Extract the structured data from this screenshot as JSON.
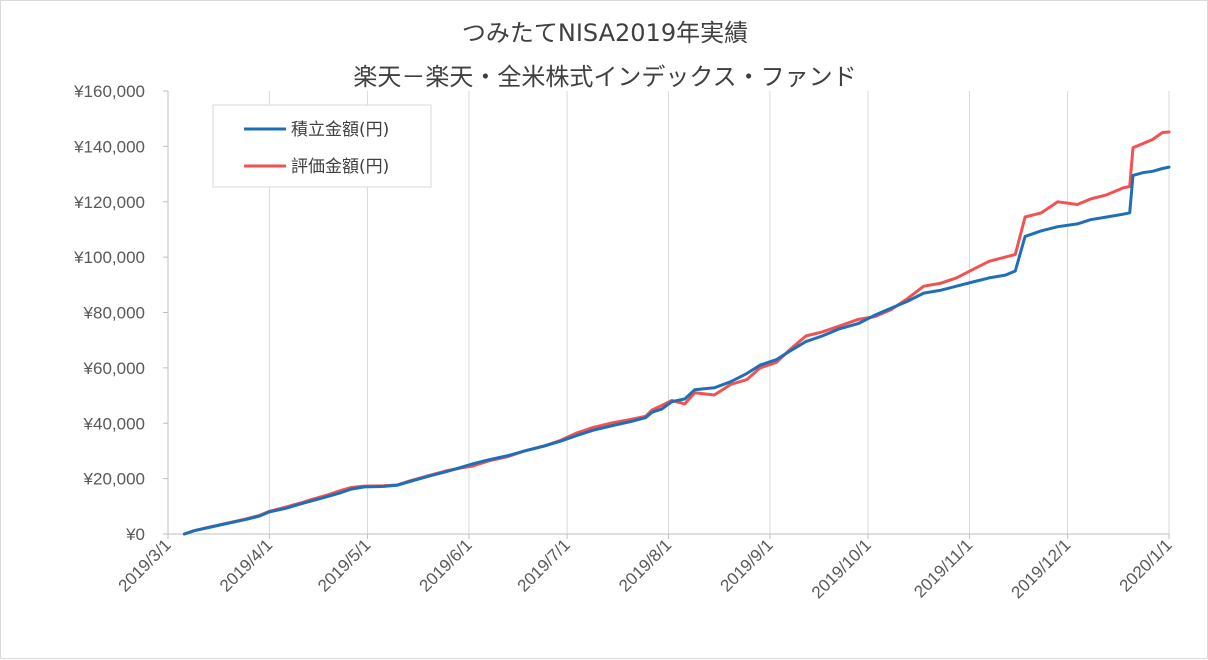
{
  "chart_data": {
    "type": "line",
    "title": "つみたてNISA2019年実績",
    "subtitle": "楽天－楽天・全米株式インデックス・ファンド",
    "xlabel": "",
    "ylabel": "",
    "x_axis": {
      "type": "date",
      "min": "2019-03-01",
      "max": "2020-01-01",
      "tick_labels": [
        "2019/3/1",
        "2019/4/1",
        "2019/5/1",
        "2019/6/1",
        "2019/7/1",
        "2019/8/1",
        "2019/9/1",
        "2019/10/1",
        "2019/11/1",
        "2019/12/1",
        "2020/1/1"
      ],
      "tick_dates": [
        "2019-03-01",
        "2019-04-01",
        "2019-05-01",
        "2019-06-01",
        "2019-07-01",
        "2019-08-01",
        "2019-09-01",
        "2019-10-01",
        "2019-11-01",
        "2019-12-01",
        "2020-01-01"
      ]
    },
    "y_axis": {
      "min": 0,
      "max": 160000,
      "tick_values": [
        0,
        20000,
        40000,
        60000,
        80000,
        100000,
        120000,
        140000,
        160000
      ],
      "tick_labels": [
        "¥0",
        "¥20,000",
        "¥40,000",
        "¥60,000",
        "¥80,000",
        "¥100,000",
        "¥120,000",
        "¥140,000",
        "¥160,000"
      ]
    },
    "grid": "vertical",
    "legend_position": "top-left",
    "series": [
      {
        "name": "積立金額(円)",
        "color": "#1f6fb8",
        "points": [
          [
            "2019-03-06",
            0
          ],
          [
            "2019-03-09",
            1200
          ],
          [
            "2019-03-14",
            2500
          ],
          [
            "2019-03-19",
            3800
          ],
          [
            "2019-03-25",
            5300
          ],
          [
            "2019-03-29",
            6500
          ],
          [
            "2019-04-01",
            8000
          ],
          [
            "2019-04-06",
            9300
          ],
          [
            "2019-04-10",
            10700
          ],
          [
            "2019-04-14",
            12000
          ],
          [
            "2019-04-19",
            13600
          ],
          [
            "2019-04-23",
            15000
          ],
          [
            "2019-04-26",
            16200
          ],
          [
            "2019-04-30",
            17000
          ],
          [
            "2019-05-06",
            17200
          ],
          [
            "2019-05-10",
            17600
          ],
          [
            "2019-05-14",
            19000
          ],
          [
            "2019-05-20",
            21000
          ],
          [
            "2019-05-25",
            22500
          ],
          [
            "2019-05-30",
            24200
          ],
          [
            "2019-06-02",
            25300
          ],
          [
            "2019-06-07",
            26800
          ],
          [
            "2019-06-13",
            28300
          ],
          [
            "2019-06-18",
            30000
          ],
          [
            "2019-06-24",
            31800
          ],
          [
            "2019-06-29",
            33500
          ],
          [
            "2019-07-04",
            35600
          ],
          [
            "2019-07-09",
            37500
          ],
          [
            "2019-07-15",
            39200
          ],
          [
            "2019-07-20",
            40500
          ],
          [
            "2019-07-25",
            42000
          ],
          [
            "2019-07-27",
            44000
          ],
          [
            "2019-07-30",
            45200
          ],
          [
            "2019-08-02",
            47800
          ],
          [
            "2019-08-06",
            48800
          ],
          [
            "2019-08-09",
            52100
          ],
          [
            "2019-08-15",
            52800
          ],
          [
            "2019-08-20",
            55000
          ],
          [
            "2019-08-25",
            58000
          ],
          [
            "2019-08-29",
            61000
          ],
          [
            "2019-09-03",
            63000
          ],
          [
            "2019-09-07",
            66000
          ],
          [
            "2019-09-12",
            69500
          ],
          [
            "2019-09-17",
            71500
          ],
          [
            "2019-09-22",
            74000
          ],
          [
            "2019-09-28",
            76000
          ],
          [
            "2019-10-03",
            79000
          ],
          [
            "2019-10-08",
            81500
          ],
          [
            "2019-10-13",
            84000
          ],
          [
            "2019-10-18",
            87000
          ],
          [
            "2019-10-23",
            88000
          ],
          [
            "2019-10-28",
            89500
          ],
          [
            "2019-11-02",
            91000
          ],
          [
            "2019-11-07",
            92500
          ],
          [
            "2019-11-12",
            93500
          ],
          [
            "2019-11-15",
            95000
          ],
          [
            "2019-11-18",
            107500
          ],
          [
            "2019-11-23",
            109500
          ],
          [
            "2019-11-28",
            111000
          ],
          [
            "2019-12-04",
            112000
          ],
          [
            "2019-12-08",
            113500
          ],
          [
            "2019-12-13",
            114500
          ],
          [
            "2019-12-18",
            115500
          ],
          [
            "2019-12-20",
            116000
          ],
          [
            "2019-12-21",
            129500
          ],
          [
            "2019-12-24",
            130500
          ],
          [
            "2019-12-27",
            131000
          ],
          [
            "2019-12-30",
            132000
          ],
          [
            "2020-01-01",
            132500
          ]
        ]
      },
      {
        "name": "評価金額(円)",
        "color": "#f25252",
        "points": [
          [
            "2019-03-06",
            0
          ],
          [
            "2019-03-09",
            1200
          ],
          [
            "2019-03-14",
            2600
          ],
          [
            "2019-03-19",
            3900
          ],
          [
            "2019-03-25",
            5500
          ],
          [
            "2019-03-29",
            6700
          ],
          [
            "2019-04-01",
            8200
          ],
          [
            "2019-04-06",
            9700
          ],
          [
            "2019-04-10",
            11000
          ],
          [
            "2019-04-14",
            12500
          ],
          [
            "2019-04-19",
            14200
          ],
          [
            "2019-04-23",
            15800
          ],
          [
            "2019-04-26",
            16800
          ],
          [
            "2019-04-30",
            17300
          ],
          [
            "2019-05-06",
            17400
          ],
          [
            "2019-05-10",
            17700
          ],
          [
            "2019-05-14",
            19200
          ],
          [
            "2019-05-20",
            21200
          ],
          [
            "2019-05-25",
            22800
          ],
          [
            "2019-05-30",
            24000
          ],
          [
            "2019-06-02",
            24500
          ],
          [
            "2019-06-07",
            26400
          ],
          [
            "2019-06-13",
            28000
          ],
          [
            "2019-06-18",
            30000
          ],
          [
            "2019-06-24",
            31800
          ],
          [
            "2019-06-29",
            33800
          ],
          [
            "2019-07-04",
            36500
          ],
          [
            "2019-07-09",
            38500
          ],
          [
            "2019-07-15",
            40200
          ],
          [
            "2019-07-20",
            41300
          ],
          [
            "2019-07-25",
            42500
          ],
          [
            "2019-07-27",
            44800
          ],
          [
            "2019-07-30",
            46500
          ],
          [
            "2019-08-02",
            48200
          ],
          [
            "2019-08-06",
            47000
          ],
          [
            "2019-08-09",
            51000
          ],
          [
            "2019-08-15",
            50200
          ],
          [
            "2019-08-20",
            54000
          ],
          [
            "2019-08-25",
            55800
          ],
          [
            "2019-08-29",
            60000
          ],
          [
            "2019-09-03",
            62000
          ],
          [
            "2019-09-07",
            66500
          ],
          [
            "2019-09-12",
            71500
          ],
          [
            "2019-09-17",
            73000
          ],
          [
            "2019-09-22",
            75000
          ],
          [
            "2019-09-28",
            77500
          ],
          [
            "2019-10-03",
            78500
          ],
          [
            "2019-10-08",
            81000
          ],
          [
            "2019-10-13",
            85000
          ],
          [
            "2019-10-18",
            89500
          ],
          [
            "2019-10-23",
            90500
          ],
          [
            "2019-10-28",
            92500
          ],
          [
            "2019-11-02",
            95500
          ],
          [
            "2019-11-07",
            98500
          ],
          [
            "2019-11-12",
            100000
          ],
          [
            "2019-11-15",
            101000
          ],
          [
            "2019-11-18",
            114500
          ],
          [
            "2019-11-23",
            116000
          ],
          [
            "2019-11-28",
            120000
          ],
          [
            "2019-12-04",
            119000
          ],
          [
            "2019-12-08",
            121000
          ],
          [
            "2019-12-13",
            122500
          ],
          [
            "2019-12-18",
            125000
          ],
          [
            "2019-12-20",
            125500
          ],
          [
            "2019-12-21",
            139500
          ],
          [
            "2019-12-24",
            141000
          ],
          [
            "2019-12-27",
            142500
          ],
          [
            "2019-12-30",
            145000
          ],
          [
            "2020-01-01",
            145200
          ]
        ]
      }
    ]
  }
}
